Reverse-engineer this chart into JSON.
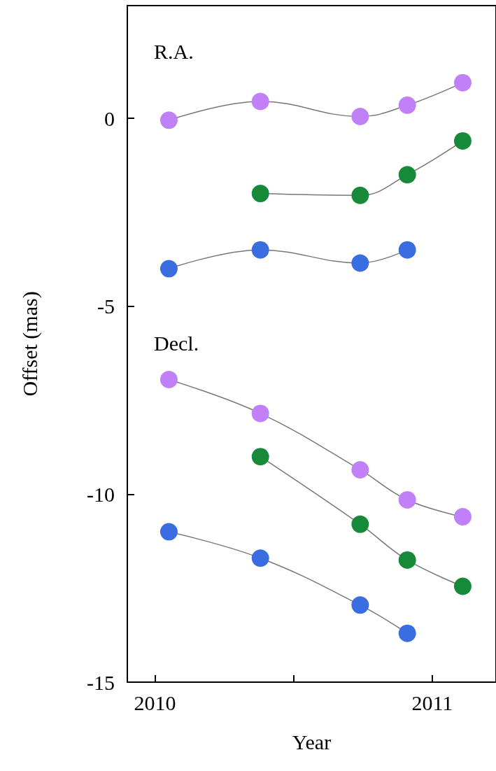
{
  "chart_data": {
    "type": "line",
    "xlabel": "Year",
    "ylabel": "Offset (mas)",
    "annotations": [
      "R.A.",
      "Decl."
    ],
    "marker": "circle",
    "line_style": "solid",
    "grid": false,
    "xlim": [
      2009.9,
      2011.23
    ],
    "xticks": [
      2010,
      {
        "value": 2010.5,
        "label": null
      },
      2011
    ],
    "ylim": [
      -15,
      3
    ],
    "yticks": [
      0,
      -5,
      -10,
      -15
    ],
    "series": [
      {
        "color": "#c080f8",
        "x": [
          2010.05,
          2010.38,
          2010.74,
          2010.91,
          2011.11
        ],
        "values": [
          -0.05,
          0.45,
          0.05,
          0.35,
          0.95
        ]
      },
      {
        "color": "#178a3a",
        "x": [
          2010.38,
          2010.74,
          2010.91,
          2011.11
        ],
        "values": [
          -2.0,
          -2.05,
          -1.5,
          -0.6
        ]
      },
      {
        "color": "#3a6ee0",
        "x": [
          2010.05,
          2010.38,
          2010.74,
          2010.91
        ],
        "values": [
          -4.0,
          -3.5,
          -3.85,
          -3.5
        ]
      },
      {
        "color": "#c080f8",
        "x": [
          2010.05,
          2010.38,
          2010.74,
          2010.91,
          2011.11
        ],
        "values": [
          -6.95,
          -7.85,
          -9.35,
          -10.15,
          -10.6
        ]
      },
      {
        "color": "#178a3a",
        "x": [
          2010.38,
          2010.74,
          2010.91,
          2011.11
        ],
        "values": [
          -9.0,
          -10.8,
          -11.75,
          -12.45
        ]
      },
      {
        "color": "#3a6ee0",
        "x": [
          2010.05,
          2010.38,
          2010.74,
          2010.91
        ],
        "values": [
          -11.0,
          -11.7,
          -12.95,
          -13.7
        ]
      }
    ]
  }
}
